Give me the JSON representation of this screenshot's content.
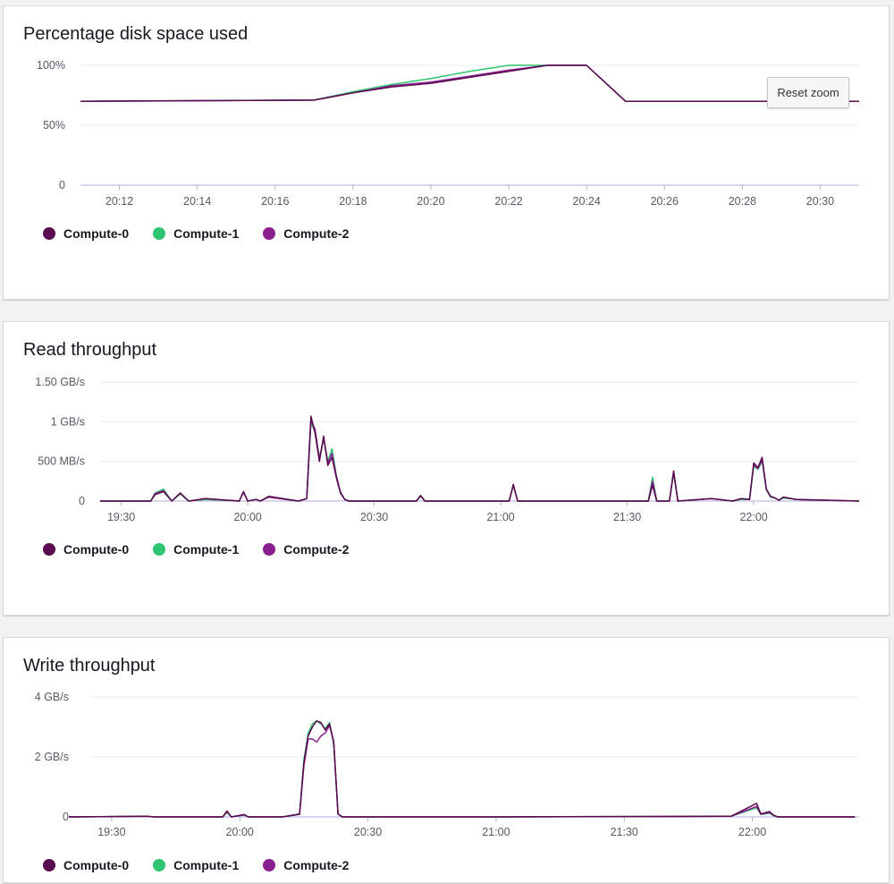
{
  "colors": {
    "compute0": "#5a0a4f",
    "compute1": "#2fc46f",
    "compute2": "#8a1f8f"
  },
  "panels": [
    {
      "title": "Percentage disk space used",
      "reset_label": "Reset zoom"
    },
    {
      "title": "Read throughput"
    },
    {
      "title": "Write throughput"
    }
  ],
  "legend": [
    "Compute-0",
    "Compute-1",
    "Compute-2"
  ],
  "chart_data": [
    {
      "type": "line",
      "title": "Percentage disk space used",
      "x_ticks": [
        "20:12",
        "20:14",
        "20:16",
        "20:18",
        "20:20",
        "20:22",
        "20:24",
        "20:26",
        "20:28",
        "20:30"
      ],
      "y_ticks": [
        "0",
        "50%",
        "100%"
      ],
      "ylim": [
        0,
        100
      ],
      "x": [
        "20:11",
        "20:17",
        "20:18",
        "20:19",
        "20:20",
        "20:21",
        "20:22",
        "20:23",
        "20:24",
        "20:25",
        "20:31"
      ],
      "series": [
        {
          "name": "Compute-0",
          "values": [
            70,
            71,
            77,
            82,
            85,
            90,
            95,
            100,
            100,
            70,
            70
          ]
        },
        {
          "name": "Compute-1",
          "values": [
            70,
            71,
            78,
            84,
            89,
            95,
            100,
            100,
            100,
            70,
            70
          ]
        },
        {
          "name": "Compute-2",
          "values": [
            70,
            71,
            77,
            83,
            86,
            91,
            96,
            100,
            100,
            70,
            70
          ]
        }
      ]
    },
    {
      "type": "line",
      "title": "Read throughput",
      "x_ticks": [
        "19:30",
        "20:00",
        "20:30",
        "21:00",
        "21:30",
        "22:00"
      ],
      "y_ticks": [
        "0",
        "500 MB/s",
        "1 GB/s",
        "1.50 GB/s"
      ],
      "ylim": [
        0,
        1.5
      ],
      "y_unit": "GB/s",
      "x": [
        "19:25",
        "19:37",
        "19:38",
        "19:40",
        "19:42",
        "19:44",
        "19:46",
        "19:50",
        "19:58",
        "19:59",
        "20:00",
        "20:02",
        "20:03",
        "20:05",
        "20:12",
        "20:14",
        "20:15",
        "20:16",
        "20:17",
        "20:18",
        "20:19",
        "20:20",
        "20:21",
        "20:22",
        "20:23",
        "20:24",
        "20:25",
        "20:40",
        "20:41",
        "20:42",
        "21:02",
        "21:03",
        "21:04",
        "21:35",
        "21:36",
        "21:37",
        "21:38",
        "21:40",
        "21:41",
        "21:42",
        "21:50",
        "21:55",
        "21:57",
        "21:59",
        "22:00",
        "22:01",
        "22:02",
        "22:03",
        "22:04",
        "22:05",
        "22:06",
        "22:07",
        "22:10",
        "22:25"
      ],
      "series": [
        {
          "name": "Compute-0",
          "values": [
            0,
            0,
            0.08,
            0.12,
            0,
            0.1,
            0,
            0.03,
            0,
            0.12,
            0,
            0.02,
            0,
            0.06,
            0,
            0.03,
            1.07,
            0.85,
            0.5,
            0.82,
            0.45,
            0.55,
            0.3,
            0.1,
            0.02,
            0,
            0,
            0,
            0.07,
            0,
            0,
            0.21,
            0,
            0,
            0.2,
            0,
            0,
            0,
            0.38,
            0,
            0.03,
            0,
            0.03,
            0.02,
            0.48,
            0.42,
            0.55,
            0.15,
            0.06,
            0.04,
            0.01,
            0.05,
            0.02,
            0
          ]
        },
        {
          "name": "Compute-1",
          "values": [
            0,
            0,
            0.1,
            0.15,
            0,
            0.09,
            0,
            0.02,
            0,
            0.11,
            0,
            0.02,
            0,
            0.05,
            0,
            0.03,
            0.98,
            0.88,
            0.55,
            0.78,
            0.5,
            0.66,
            0.33,
            0.12,
            0.02,
            0,
            0,
            0,
            0.06,
            0,
            0,
            0.2,
            0,
            0,
            0.3,
            0,
            0,
            0,
            0.35,
            0,
            0.03,
            0,
            0.02,
            0.02,
            0.44,
            0.4,
            0.5,
            0.14,
            0.05,
            0.04,
            0.01,
            0.04,
            0.02,
            0
          ]
        },
        {
          "name": "Compute-2",
          "values": [
            0,
            0,
            0.09,
            0.13,
            0,
            0.1,
            0,
            0.03,
            0,
            0.11,
            0,
            0.02,
            0,
            0.05,
            0,
            0.03,
            1.02,
            0.9,
            0.52,
            0.8,
            0.48,
            0.6,
            0.32,
            0.11,
            0.02,
            0,
            0,
            0,
            0.07,
            0,
            0,
            0.2,
            0,
            0,
            0.25,
            0,
            0,
            0,
            0.37,
            0,
            0.03,
            0,
            0.03,
            0.02,
            0.46,
            0.41,
            0.52,
            0.15,
            0.06,
            0.04,
            0.01,
            0.05,
            0.02,
            0
          ]
        }
      ]
    },
    {
      "type": "line",
      "title": "Write throughput",
      "x_ticks": [
        "19:30",
        "20:00",
        "20:30",
        "21:00",
        "21:30",
        "22:00"
      ],
      "y_ticks": [
        "0",
        "2 GB/s",
        "4 GB/s"
      ],
      "ylim": [
        0,
        4
      ],
      "y_unit": "GB/s",
      "x": [
        "19:20",
        "19:38",
        "19:40",
        "19:56",
        "19:57",
        "19:58",
        "20:01",
        "20:02",
        "20:10",
        "20:14",
        "20:15",
        "20:16",
        "20:17",
        "20:18",
        "20:19",
        "20:20",
        "20:21",
        "20:22",
        "20:23",
        "20:24",
        "20:25",
        "21:00",
        "21:55",
        "22:01",
        "22:02",
        "22:04",
        "22:05",
        "22:06",
        "22:24"
      ],
      "series": [
        {
          "name": "Compute-0",
          "values": [
            0,
            0.02,
            0,
            0,
            0.2,
            0,
            0.08,
            0,
            0,
            0.1,
            1.8,
            2.7,
            3.0,
            3.2,
            3.15,
            2.9,
            3.1,
            2.5,
            0.1,
            0,
            0,
            0,
            0.02,
            0.45,
            0.1,
            0.18,
            0.05,
            0,
            0
          ]
        },
        {
          "name": "Compute-1",
          "values": [
            0,
            0.02,
            0,
            0,
            0.15,
            0,
            0.06,
            0,
            0,
            0.08,
            1.9,
            2.8,
            3.1,
            3.2,
            3.1,
            2.95,
            3.15,
            2.4,
            0.1,
            0,
            0,
            0,
            0.02,
            0.3,
            0.08,
            0.12,
            0.04,
            0,
            0
          ]
        },
        {
          "name": "Compute-2",
          "values": [
            0,
            0.02,
            0,
            0,
            0.18,
            0,
            0.07,
            0,
            0,
            0.09,
            1.7,
            2.6,
            2.6,
            2.5,
            2.7,
            2.8,
            3.05,
            2.5,
            0.1,
            0,
            0,
            0,
            0.02,
            0.35,
            0.09,
            0.15,
            0.05,
            0,
            0
          ]
        }
      ]
    }
  ]
}
